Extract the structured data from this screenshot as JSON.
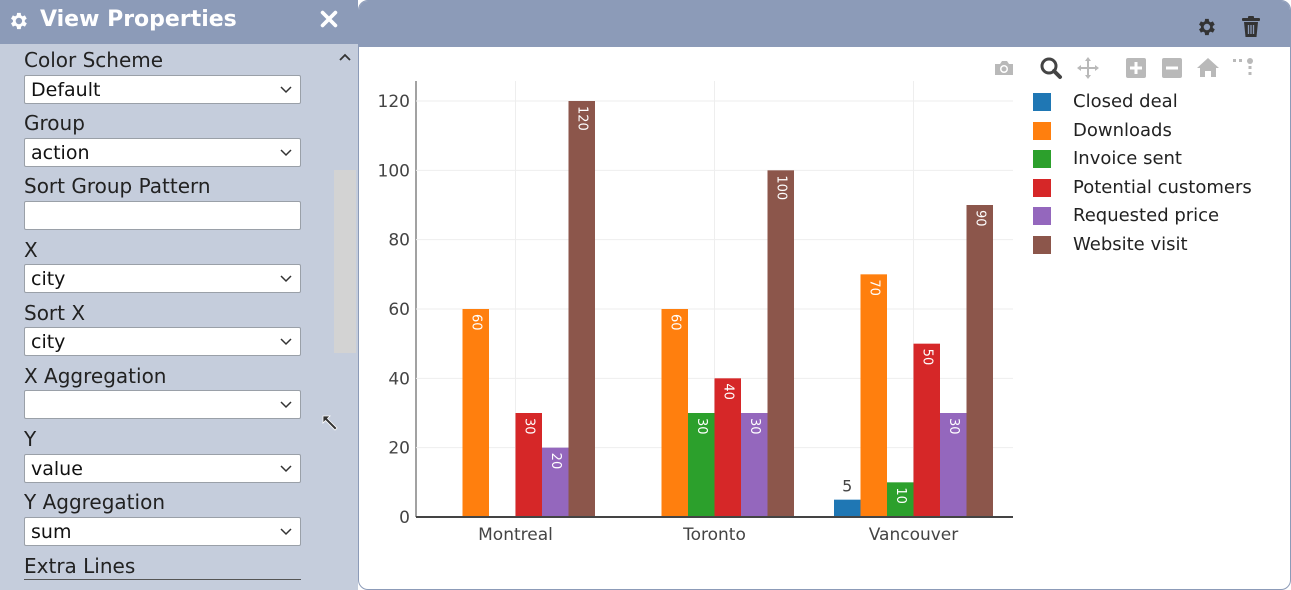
{
  "panel": {
    "title": "View Properties",
    "properties": [
      {
        "label": "Color Scheme",
        "kind": "select",
        "value": "Default"
      },
      {
        "label": "Group",
        "kind": "select",
        "value": "action"
      },
      {
        "label": "Sort Group Pattern",
        "kind": "text",
        "value": ""
      },
      {
        "label": "X",
        "kind": "select",
        "value": "city"
      },
      {
        "label": "Sort X",
        "kind": "select",
        "value": "city"
      },
      {
        "label": "X Aggregation",
        "kind": "select",
        "value": ""
      },
      {
        "label": "Y",
        "kind": "select",
        "value": "value"
      },
      {
        "label": "Y Aggregation",
        "kind": "select",
        "value": "sum"
      }
    ],
    "extra_lines_label": "Extra Lines"
  },
  "icons": {
    "panel_gear": "gear-icon",
    "panel_close": "close-icon",
    "scroll_up": "chevron-up-icon",
    "cursor": "resize-cursor-icon",
    "header_settings": "gear-icon",
    "header_delete": "trash-icon",
    "modebar": [
      "camera-icon",
      "zoom-icon",
      "pan-icon",
      "zoom-in-icon",
      "zoom-out-icon",
      "home-icon",
      "spikelines-icon"
    ]
  },
  "colors": {
    "header_bg": "#8c9bb8",
    "panel_bg": "#c5cddc"
  },
  "chart_data": {
    "type": "bar",
    "categories": [
      "Montreal",
      "Toronto",
      "Vancouver"
    ],
    "series": [
      {
        "name": "Closed deal",
        "color": "#1f77b4",
        "values": [
          null,
          null,
          5
        ]
      },
      {
        "name": "Downloads",
        "color": "#ff7f0e",
        "values": [
          60,
          60,
          70
        ]
      },
      {
        "name": "Invoice sent",
        "color": "#2ca02c",
        "values": [
          null,
          30,
          10
        ]
      },
      {
        "name": "Potential customers",
        "color": "#d62728",
        "values": [
          30,
          40,
          50
        ]
      },
      {
        "name": "Requested price",
        "color": "#9467bd",
        "values": [
          20,
          30,
          30
        ]
      },
      {
        "name": "Website visit",
        "color": "#8c564b",
        "values": [
          120,
          100,
          90
        ]
      }
    ],
    "yticks": [
      0,
      20,
      40,
      60,
      80,
      100,
      120
    ],
    "ylim": [
      0,
      120
    ],
    "grid": true,
    "legend_position": "right",
    "title": "",
    "xlabel": "",
    "ylabel": ""
  }
}
